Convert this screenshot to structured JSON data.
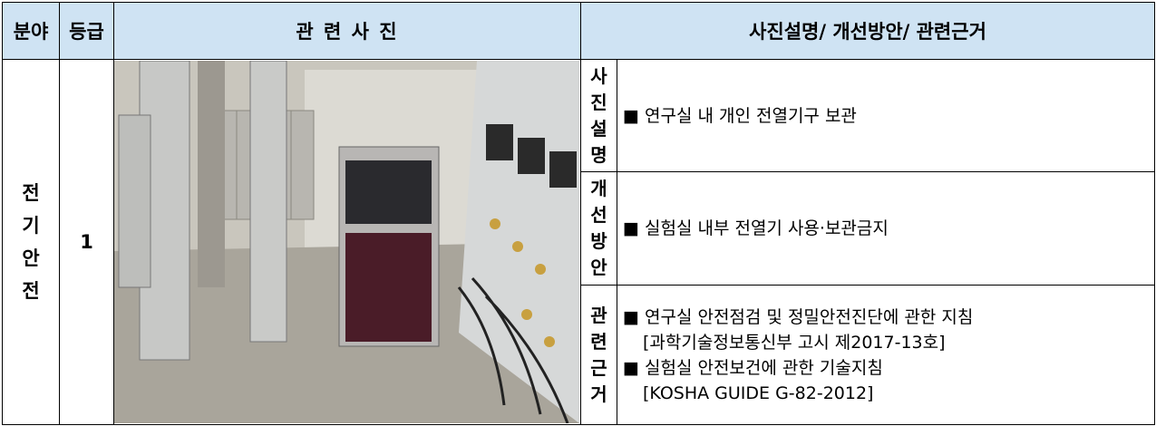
{
  "table": {
    "header": [
      "분야",
      "등급",
      "관 련 사 진",
      "사진설명/ 개선방안/ 관련근거"
    ],
    "category": "전기안전",
    "grade": "1",
    "rows": [
      {
        "label": "사진설명",
        "lines": [
          "■ 연구실 내 개인 전열기구 보관"
        ]
      },
      {
        "label": "개선방안",
        "lines": [
          "■ 실험실 내부 전열기 사용·보관금지"
        ]
      },
      {
        "label": "관련근거",
        "lines": [
          "■ 연구실 안전점검 및 정밀안전진단에 관한 지침",
          "[과학기술정보통신부 고시 제2017-13호]",
          "■ 실험실 안전보건에 관한 기술지침",
          "[KOSHA GUIDE G-82-2012]"
        ]
      }
    ]
  }
}
